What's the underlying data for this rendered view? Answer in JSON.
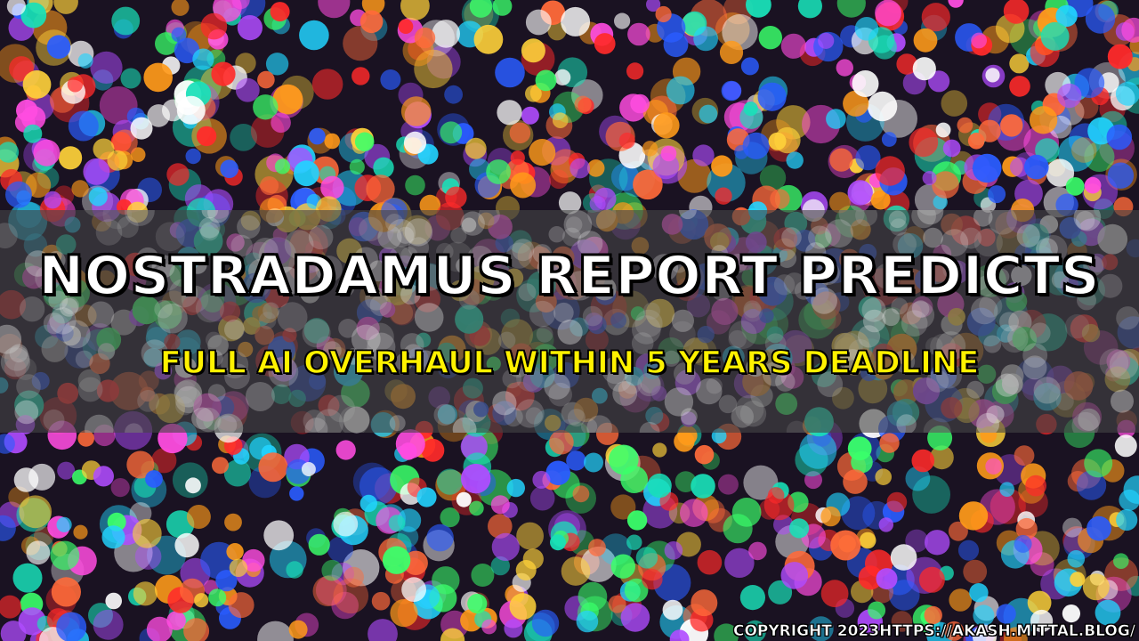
{
  "title": "NOSTRADAMUS REPORT PREDICTS",
  "subtitle": "FULL AI OVERHAUL WITHIN 5 YEARS DEADLINE",
  "copyright": "COPYRIGHT 2023HTTPS://AKASH.MITTAL.BLOG/",
  "background": "colorful-bokeh-lights",
  "colors": {
    "title": "#ffffff",
    "subtitle": "#fff200",
    "outline": "#000000",
    "band": "#464646",
    "bokeh_palette": [
      "#ff2a2a",
      "#ff9a1a",
      "#ffd23a",
      "#3aff6a",
      "#22d4ff",
      "#2a5cff",
      "#b04cff",
      "#ff4ce0",
      "#ffffff",
      "#19e0b8",
      "#ff6a3a"
    ]
  }
}
